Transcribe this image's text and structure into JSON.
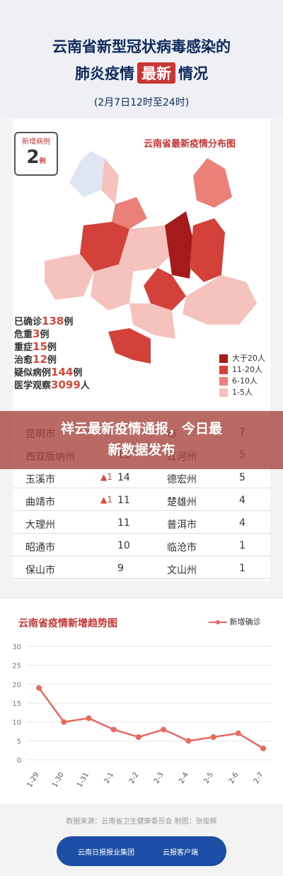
{
  "header": {
    "line1": "云南省新型冠状病毒感染的",
    "line2_pre": "肺炎疫情",
    "line2_hl": "最新",
    "line2_post": "情况",
    "line3": "(2月7日12时至24时)"
  },
  "newcases": {
    "label": "新增病例",
    "value": "2",
    "unit": "例"
  },
  "map": {
    "title": "云南省最新疫情分布图"
  },
  "stats": [
    {
      "label": "已确诊",
      "value": "138",
      "unit": "例"
    },
    {
      "label": "危重",
      "value": "3",
      "unit": "例"
    },
    {
      "label": "重症",
      "value": "15",
      "unit": "例"
    },
    {
      "label": "治愈",
      "value": "12",
      "unit": "例"
    },
    {
      "label": "疑似病例",
      "value": "144",
      "unit": "例"
    },
    {
      "label": "医学观察",
      "value": "3099",
      "unit": "人"
    }
  ],
  "legend": [
    {
      "label": "大于20人",
      "color": "#a51b1b"
    },
    {
      "label": "11-20人",
      "color": "#d2413a"
    },
    {
      "label": "6-10人",
      "color": "#ea8078"
    },
    {
      "label": "1-5人",
      "color": "#f6c2bd"
    }
  ],
  "banner": {
    "line1": "祥云最新疫情通报，今日最",
    "line2": "新数据发布"
  },
  "table": [
    [
      "昆明市",
      "",
      "",
      "市",
      "7"
    ],
    [
      "西双版纳州",
      "",
      "15",
      "红河州",
      "5"
    ],
    [
      "玉溪市",
      "▲1",
      "14",
      "德宏州",
      "5"
    ],
    [
      "曲靖市",
      "▲1",
      "11",
      "楚雄州",
      "4"
    ],
    [
      "大理州",
      "",
      "11",
      "普洱市",
      "4"
    ],
    [
      "昭通市",
      "",
      "10",
      "临沧市",
      "1"
    ],
    [
      "保山市",
      "",
      "9",
      "文山州",
      "1"
    ]
  ],
  "chart_data": {
    "type": "line",
    "title": "云南省疫情新增趋势图",
    "x": [
      "1-29",
      "1-30",
      "1-31",
      "2-1",
      "2-2",
      "2-3",
      "2-4",
      "2-5",
      "2-6",
      "2-7"
    ],
    "series": [
      {
        "name": "新增确诊",
        "values": [
          19,
          10,
          11,
          8,
          6,
          8,
          5,
          6,
          7,
          3
        ],
        "color": "#e8695e"
      }
    ],
    "yticks": [
      "0",
      "5",
      "10",
      "15",
      "20",
      "25",
      "30"
    ],
    "ylim": [
      0,
      30
    ],
    "legend": "top-right",
    "grid": true
  },
  "source": "数据来源：云南省卫生健康委员会    制图：张俊辉",
  "footer": {
    "logo1": "云南日报报业集团",
    "logo2": "云报客户端"
  }
}
